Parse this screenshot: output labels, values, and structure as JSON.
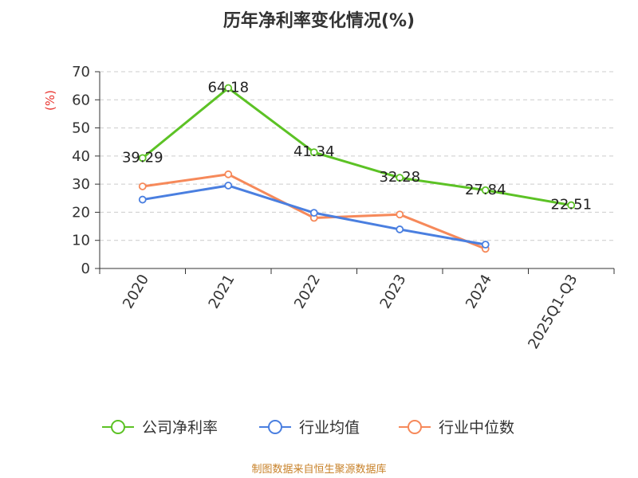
{
  "title": "历年净利率变化情况(%)",
  "source": "制图数据来自恒生聚源数据库",
  "chart_data": {
    "type": "line",
    "title": "历年净利率变化情况(%)",
    "ylabel": "(%)",
    "ylabel_color": "#e8332e",
    "ylim": [
      0,
      70
    ],
    "yticks": [
      0,
      10,
      20,
      30,
      40,
      50,
      60,
      70
    ],
    "grid": "horizontal dashed",
    "legend_position": "bottom",
    "categories": [
      "2020",
      "2021",
      "2022",
      "2023",
      "2024",
      "2025Q1-Q3"
    ],
    "series": [
      {
        "name": "公司净利率",
        "color": "#5cc225",
        "values": [
          39.29,
          64.18,
          41.34,
          32.28,
          27.84,
          22.51
        ],
        "labels": [
          "39.29",
          "64.18",
          "41.34",
          "32.28",
          "27.84",
          "22.51"
        ]
      },
      {
        "name": "行业均值",
        "color": "#4a7fe0",
        "values": [
          24.5,
          29.5,
          19.8,
          13.9,
          8.5,
          null
        ]
      },
      {
        "name": "行业中位数",
        "color": "#f6895a",
        "values": [
          29.2,
          33.5,
          18.0,
          19.2,
          7.0,
          null
        ]
      }
    ]
  }
}
